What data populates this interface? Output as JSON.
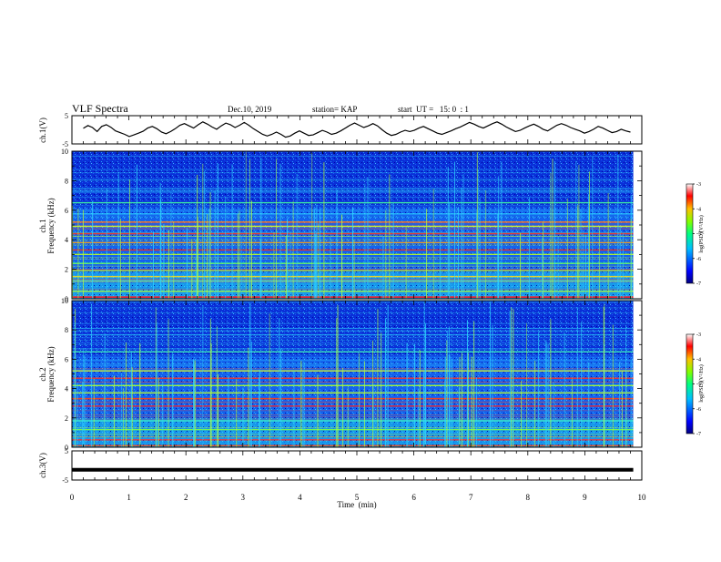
{
  "header": {
    "title": "VLF Spectra",
    "date": "Dec.10, 2019",
    "station": "station= KAP",
    "start": "start  UT =   15: 0  : 1"
  },
  "chart_data": [
    {
      "type": "line",
      "name": "ch1-waveform",
      "ylabel": "ch.1(V)",
      "yticks": [
        "5",
        "-5"
      ],
      "ylim": [
        -5,
        5
      ],
      "xlim": [
        0,
        10
      ],
      "note_values_estimated": true,
      "values": [
        0.5,
        1.5,
        0.8,
        -0.6,
        1.2,
        1.8,
        0.9,
        -0.4,
        -1.0,
        -1.6,
        -2.4,
        -1.8,
        -1.2,
        -0.5,
        0.6,
        1.2,
        0.4,
        -0.8,
        -1.4,
        -0.6,
        0.4,
        1.6,
        2.2,
        1.4,
        0.6,
        1.8,
        2.8,
        2.0,
        1.0,
        0.2,
        1.4,
        2.4,
        1.8,
        0.8,
        1.6,
        2.6,
        1.6,
        0.4,
        -0.6,
        -1.6,
        -2.2,
        -1.6,
        -0.8,
        -1.6,
        -2.6,
        -2.2,
        -1.2,
        -0.4,
        -1.2,
        -2.0,
        -1.8,
        -1.0,
        -0.2,
        -0.8,
        -1.6,
        -1.2,
        -0.4,
        0.6,
        1.6,
        2.4,
        1.6,
        0.8,
        1.4,
        2.2,
        1.4,
        0.0,
        -1.2,
        -2.0,
        -1.6,
        -0.8,
        -0.2,
        -0.6,
        -0.2,
        0.6,
        1.2,
        0.4,
        -0.4,
        -1.2,
        -1.6,
        -1.0,
        -0.4,
        0.4,
        1.0,
        1.8,
        2.6,
        2.0,
        1.2,
        0.6,
        1.4,
        2.2,
        2.8,
        2.0,
        1.0,
        0.2,
        -0.6,
        -0.2,
        0.6,
        1.4,
        2.0,
        1.2,
        0.2,
        -0.4,
        0.6,
        1.6,
        2.2,
        1.6,
        0.8,
        0.2,
        -0.4,
        -1.2,
        -0.6,
        0.2,
        1.2,
        0.6,
        -0.2,
        -1.0,
        -0.6,
        0.2,
        -0.4,
        -0.8
      ]
    },
    {
      "type": "heatmap",
      "name": "ch1-spectrogram",
      "ylabel": "ch.1",
      "ylabel2": "Frequency  (kHz)",
      "yticks": [
        "0",
        "2",
        "4",
        "6",
        "8",
        "10"
      ],
      "ylim": [
        0,
        10
      ],
      "xlim": [
        0,
        10
      ],
      "colorbar": {
        "label": "log(PSD)(V²/Hz)",
        "ticks": [
          "-3",
          "-4",
          "-5",
          "-6",
          "-7"
        ],
        "range": [
          -7,
          -3
        ]
      },
      "bands_khz": [
        {
          "f": 0.1,
          "color": "#ff1020"
        },
        {
          "f": 0.5,
          "color": "#b0ff30"
        },
        {
          "f": 1.2,
          "color": "#40ffc0"
        },
        {
          "f": 1.5,
          "color": "#ffd020"
        },
        {
          "f": 1.9,
          "color": "#a0ff40"
        },
        {
          "f": 2.4,
          "color": "#40ff80"
        },
        {
          "f": 3.0,
          "color": "#c0ff20"
        },
        {
          "f": 3.3,
          "color": "#ff3010"
        },
        {
          "f": 3.8,
          "color": "#ffa010"
        },
        {
          "f": 4.4,
          "color": "#ff2020"
        },
        {
          "f": 4.9,
          "color": "#e0ff20"
        },
        {
          "f": 5.2,
          "color": "#ff8020"
        },
        {
          "f": 6.5,
          "color": "#40ffa0"
        }
      ]
    },
    {
      "type": "heatmap",
      "name": "ch2-spectrogram",
      "ylabel": "ch.2",
      "ylabel2": "Frequency  (kHz)",
      "yticks": [
        "0",
        "2",
        "4",
        "6",
        "8",
        "10"
      ],
      "ylim": [
        0,
        10
      ],
      "xlim": [
        0,
        10
      ],
      "colorbar": {
        "label": "log(PSD)(V²/Hz)",
        "ticks": [
          "-3",
          "-4",
          "-5",
          "-6",
          "-7"
        ],
        "range": [
          -7,
          -3
        ]
      },
      "bands_khz": [
        {
          "f": 0.1,
          "color": "#ff1020"
        },
        {
          "f": 0.5,
          "color": "#ff3030"
        },
        {
          "f": 1.2,
          "color": "#80ff40"
        },
        {
          "f": 1.8,
          "color": "#40ffc0"
        },
        {
          "f": 2.8,
          "color": "#ff2020"
        },
        {
          "f": 3.3,
          "color": "#ff4010"
        },
        {
          "f": 3.7,
          "color": "#c0ff20"
        },
        {
          "f": 4.2,
          "color": "#a0ff30"
        },
        {
          "f": 4.7,
          "color": "#ff3020"
        },
        {
          "f": 5.2,
          "color": "#e0ff20"
        },
        {
          "f": 6.5,
          "color": "#40ffa0"
        }
      ]
    },
    {
      "type": "line",
      "name": "ch3-waveform",
      "ylabel": "ch.3(V)",
      "yticks": [
        "5",
        "-5"
      ],
      "ylim": [
        -5,
        5
      ],
      "xlim": [
        0,
        10
      ],
      "values_constant": -1.5
    }
  ],
  "xaxis": {
    "label": "Time  (min)",
    "ticks": [
      "0",
      "1",
      "2",
      "3",
      "4",
      "5",
      "6",
      "7",
      "8",
      "9",
      "10"
    ]
  }
}
